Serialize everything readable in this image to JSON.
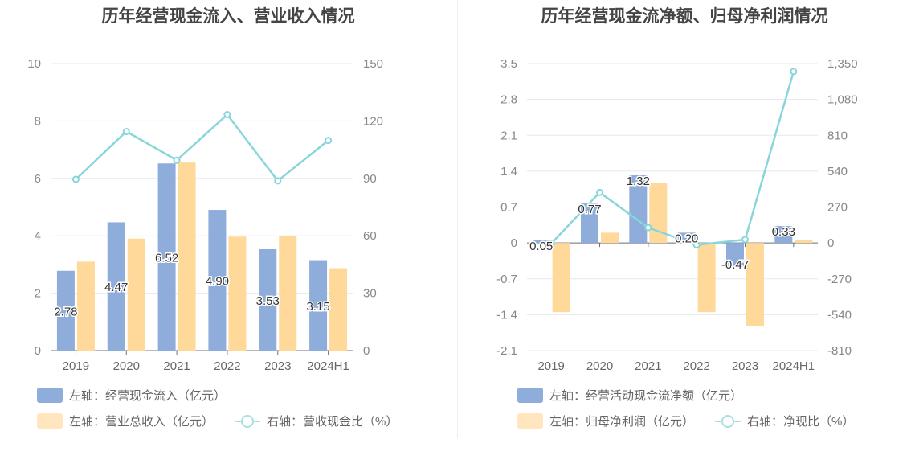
{
  "colors": {
    "bar1": "#8eadda",
    "bar2": "#ffd99a",
    "line": "#88d6da",
    "grid": "#e6e8ee"
  },
  "chart_data": [
    {
      "type": "bar",
      "title": "历年经营现金流入、营业收入情况",
      "categories": [
        "2019",
        "2020",
        "2021",
        "2022",
        "2023",
        "2024H1"
      ],
      "y_left_ticks": [
        "0",
        "2",
        "4",
        "6",
        "8",
        "10"
      ],
      "y_right_ticks": [
        "0",
        "30",
        "60",
        "90",
        "120",
        "150"
      ],
      "ylim_left": [
        0,
        10
      ],
      "ylim_right": [
        0,
        150
      ],
      "series": [
        {
          "name": "左轴：经营现金流入（亿元）",
          "axis": "left",
          "kind": "bar",
          "values": [
            2.78,
            4.47,
            6.52,
            4.9,
            3.53,
            3.15
          ],
          "labels": [
            "2.78",
            "4.47",
            "6.52",
            "4.90",
            "3.53",
            "3.15"
          ]
        },
        {
          "name": "左轴：营业总收入（亿元）",
          "axis": "left",
          "kind": "bar",
          "values": [
            3.1,
            3.9,
            6.55,
            3.97,
            3.98,
            2.87
          ]
        },
        {
          "name": "右轴：营收现金比（%）",
          "axis": "right",
          "kind": "line",
          "values": [
            89.5,
            114.5,
            99.5,
            123.3,
            88.7,
            109.8
          ]
        }
      ],
      "grid": true
    },
    {
      "type": "bar",
      "title": "历年经营现金流净额、归母净利润情况",
      "categories": [
        "2019",
        "2020",
        "2021",
        "2022",
        "2023",
        "2024H1"
      ],
      "y_left_ticks": [
        "-2.1",
        "-1.4",
        "-0.7",
        "0",
        "0.7",
        "1.4",
        "2.1",
        "2.8",
        "3.5"
      ],
      "y_right_ticks": [
        "-810",
        "-540",
        "-270",
        "0",
        "270",
        "540",
        "810",
        "1,080",
        "1,350"
      ],
      "ylim_left": [
        -2.1,
        3.5
      ],
      "ylim_right": [
        -810,
        1350
      ],
      "series": [
        {
          "name": "左轴：经营活动现金流净额（亿元）",
          "axis": "left",
          "kind": "bar",
          "values": [
            0.05,
            0.77,
            1.32,
            0.2,
            -0.47,
            0.33
          ],
          "labels": [
            "0.05",
            "0.77",
            "1.32",
            "0.20",
            "-0.47",
            "0.33"
          ]
        },
        {
          "name": "左轴：归母净利润（亿元）",
          "axis": "left",
          "kind": "bar",
          "values": [
            -1.35,
            0.2,
            1.17,
            -1.35,
            -1.63,
            0.05
          ]
        },
        {
          "name": "右轴：净现比（%）",
          "axis": "right",
          "kind": "line",
          "values": [
            -5,
            380,
            115,
            -15,
            25,
            1290
          ]
        }
      ],
      "grid": true
    }
  ]
}
